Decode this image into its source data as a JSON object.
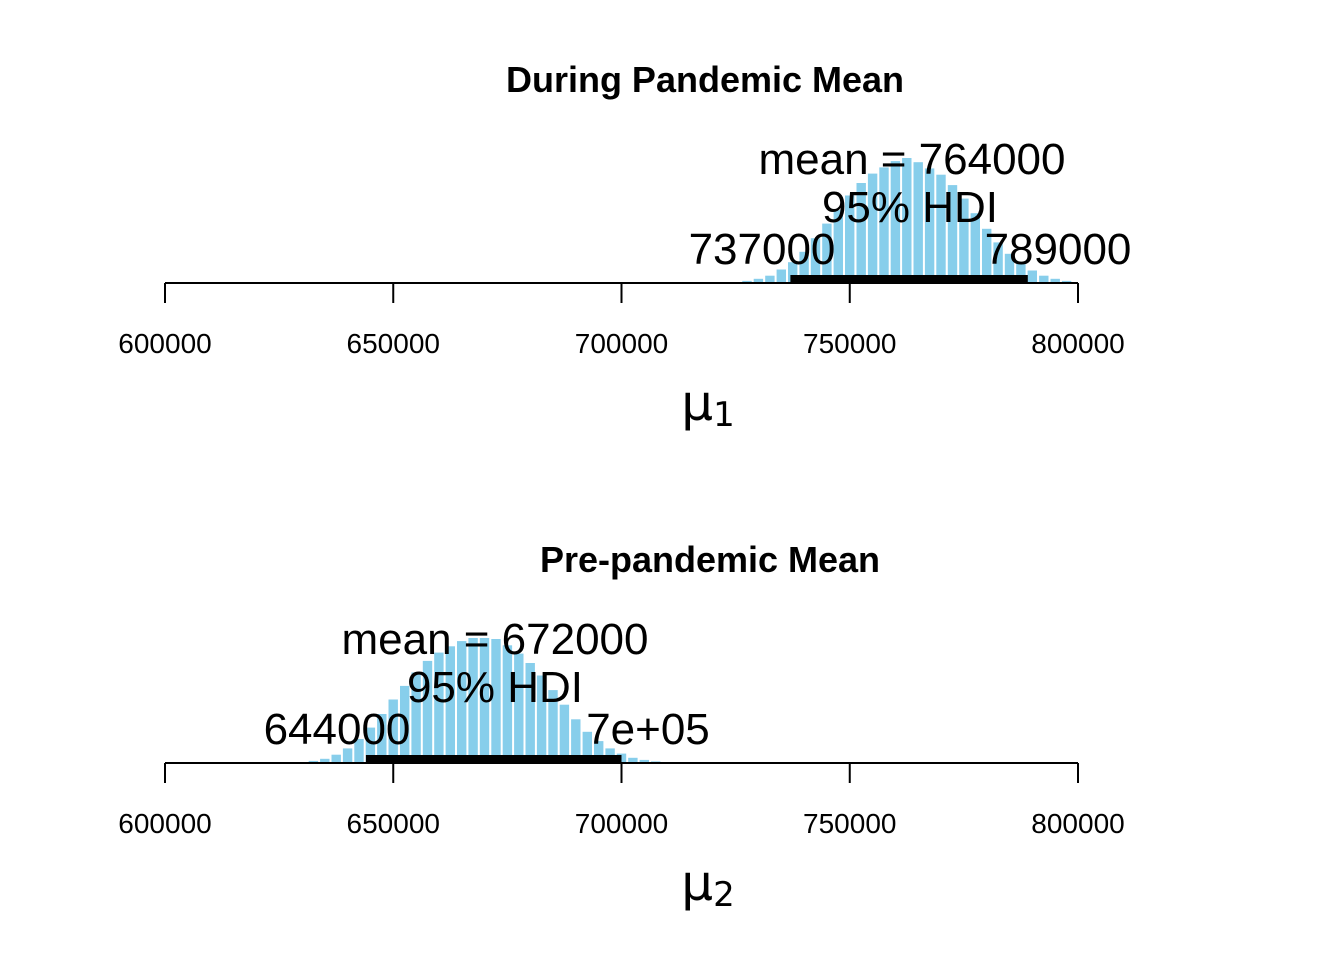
{
  "chart_data": [
    {
      "type": "bar",
      "title": "During Pandemic Mean",
      "xlabel_symbol": "μ",
      "xlabel_subscript": "1",
      "ylabel": "",
      "xlim": [
        600000,
        800000
      ],
      "xticks": [
        600000,
        650000,
        700000,
        750000,
        800000
      ],
      "tick_labels": [
        "600000",
        "650000",
        "700000",
        "750000",
        "800000"
      ],
      "bin_width": 2500,
      "bins": [
        {
          "x": 727500,
          "density": 0.2
        },
        {
          "x": 730000,
          "density": 0.4
        },
        {
          "x": 732500,
          "density": 0.7
        },
        {
          "x": 735000,
          "density": 1.3
        },
        {
          "x": 737500,
          "density": 2.0
        },
        {
          "x": 740000,
          "density": 3.0
        },
        {
          "x": 742500,
          "density": 4.3
        },
        {
          "x": 745000,
          "density": 5.7
        },
        {
          "x": 747500,
          "density": 7.0
        },
        {
          "x": 750000,
          "density": 8.4
        },
        {
          "x": 752500,
          "density": 9.6
        },
        {
          "x": 755000,
          "density": 10.5
        },
        {
          "x": 757500,
          "density": 11.1
        },
        {
          "x": 760000,
          "density": 11.7
        },
        {
          "x": 762500,
          "density": 12.0
        },
        {
          "x": 765000,
          "density": 11.6
        },
        {
          "x": 767500,
          "density": 11.0
        },
        {
          "x": 770000,
          "density": 10.4
        },
        {
          "x": 772500,
          "density": 9.4
        },
        {
          "x": 775000,
          "density": 8.1
        },
        {
          "x": 777500,
          "density": 6.7
        },
        {
          "x": 780000,
          "density": 5.2
        },
        {
          "x": 782500,
          "density": 3.9
        },
        {
          "x": 785000,
          "density": 2.8
        },
        {
          "x": 787500,
          "density": 1.9
        },
        {
          "x": 790000,
          "density": 1.2
        },
        {
          "x": 792500,
          "density": 0.7
        },
        {
          "x": 795000,
          "density": 0.4
        },
        {
          "x": 797500,
          "density": 0.2
        }
      ],
      "hdi": [
        737000,
        789000
      ],
      "mean": 764000,
      "mean_label": "mean = 764000",
      "hdi_label": "95% HDI",
      "hdi_low_label": "737000",
      "hdi_high_label": "789000",
      "bar_color": "#87CEEB",
      "hdi_color": "#000000"
    },
    {
      "type": "bar",
      "title": "Pre-pandemic Mean",
      "xlabel_symbol": "μ",
      "xlabel_subscript": "2",
      "ylabel": "",
      "xlim": [
        600000,
        800000
      ],
      "xticks": [
        600000,
        650000,
        700000,
        750000,
        800000
      ],
      "tick_labels": [
        "600000",
        "650000",
        "700000",
        "750000",
        "800000"
      ],
      "bin_width": 2500,
      "bins": [
        {
          "x": 632500,
          "density": 0.2
        },
        {
          "x": 635000,
          "density": 0.4
        },
        {
          "x": 637500,
          "density": 0.8
        },
        {
          "x": 640000,
          "density": 1.4
        },
        {
          "x": 642500,
          "density": 2.3
        },
        {
          "x": 645000,
          "density": 3.4
        },
        {
          "x": 647500,
          "density": 4.7
        },
        {
          "x": 650000,
          "density": 6.1
        },
        {
          "x": 652500,
          "density": 7.4
        },
        {
          "x": 655000,
          "density": 8.7
        },
        {
          "x": 657500,
          "density": 9.8
        },
        {
          "x": 660000,
          "density": 10.6
        },
        {
          "x": 662500,
          "density": 11.2
        },
        {
          "x": 665000,
          "density": 11.7
        },
        {
          "x": 667500,
          "density": 12.0
        },
        {
          "x": 670000,
          "density": 12.0
        },
        {
          "x": 672500,
          "density": 11.9
        },
        {
          "x": 675000,
          "density": 11.3
        },
        {
          "x": 677500,
          "density": 10.5
        },
        {
          "x": 680000,
          "density": 9.6
        },
        {
          "x": 682500,
          "density": 8.4
        },
        {
          "x": 685000,
          "density": 7.0
        },
        {
          "x": 687500,
          "density": 5.6
        },
        {
          "x": 690000,
          "density": 4.2
        },
        {
          "x": 692500,
          "density": 3.0
        },
        {
          "x": 695000,
          "density": 2.1
        },
        {
          "x": 697500,
          "density": 1.4
        },
        {
          "x": 700000,
          "density": 0.9
        },
        {
          "x": 702500,
          "density": 0.5
        },
        {
          "x": 705000,
          "density": 0.3
        },
        {
          "x": 707500,
          "density": 0.15
        }
      ],
      "hdi": [
        644000,
        700000
      ],
      "mean": 672000,
      "mean_label": "mean = 672000",
      "hdi_label": "95% HDI",
      "hdi_low_label": "644000",
      "hdi_high_label": "7e+05",
      "bar_color": "#87CEEB",
      "hdi_color": "#000000"
    }
  ]
}
